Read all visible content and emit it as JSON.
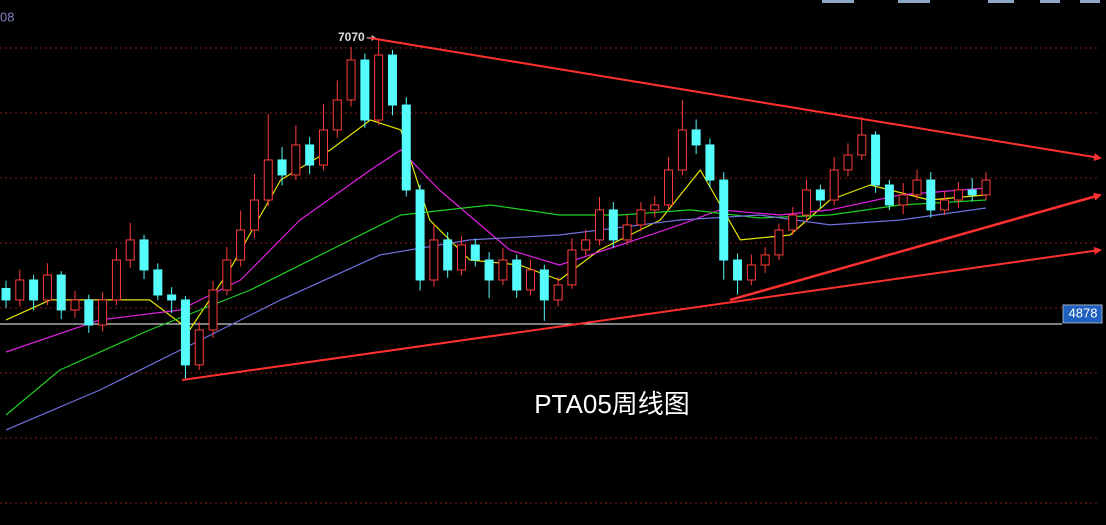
{
  "chart_data": {
    "type": "candlestick",
    "title": "PTA05周线图",
    "corner_label": "08",
    "peak_label": 7070,
    "reference_line": 4878,
    "up_color": "#ff3c3c",
    "down_color": "#54fcfc",
    "ylim": [
      3337,
      7361
    ],
    "open": [
      5150,
      5062,
      5215,
      5062,
      5253,
      4985,
      5062,
      4870,
      5062,
      5368,
      5522,
      5292,
      5100,
      5062,
      4564,
      4832,
      5138,
      5368,
      5598,
      5828,
      6135,
      6020,
      6250,
      6096,
      6365,
      6595,
      6901,
      6441,
      6939,
      6556,
      5905,
      5215,
      5522,
      5292,
      5483,
      5368,
      5215,
      5368,
      5138,
      5292,
      5062,
      5177,
      5445,
      5522,
      5752,
      5522,
      5637,
      5752,
      5790,
      6058,
      6365,
      6250,
      5981,
      5368,
      5215,
      5330,
      5407,
      5598,
      5713,
      5905,
      5828,
      6058,
      6173,
      6326,
      5943,
      5790,
      5867,
      5981,
      5752,
      5828,
      5905,
      5867
    ],
    "high": [
      5210,
      5295,
      5255,
      5343,
      5283,
      5132,
      5102,
      5122,
      5458,
      5652,
      5562,
      5342,
      5160,
      5092,
      4892,
      5208,
      5468,
      5748,
      6028,
      6485,
      6235,
      6400,
      6310,
      6565,
      6745,
      7001,
      6951,
      7070,
      6979,
      6616,
      5945,
      5642,
      5582,
      5553,
      5533,
      5428,
      5458,
      5408,
      5372,
      5332,
      5237,
      5535,
      5602,
      5852,
      5812,
      5717,
      5812,
      5860,
      6158,
      6595,
      6445,
      6300,
      6041,
      5418,
      5410,
      5467,
      5648,
      5773,
      5985,
      5945,
      6158,
      6263,
      6466,
      6356,
      5983,
      5957,
      6061,
      6041,
      5898,
      5965,
      5995,
      6041
    ],
    "low": [
      5002,
      5012,
      4982,
      5022,
      4915,
      4925,
      4810,
      4820,
      5022,
      5308,
      5222,
      5060,
      4962,
      4449,
      4524,
      4772,
      5098,
      5318,
      5538,
      5778,
      5940,
      5980,
      6026,
      6056,
      6305,
      6545,
      6381,
      6401,
      6476,
      5855,
      5135,
      5165,
      5232,
      5252,
      5318,
      5075,
      5175,
      5078,
      5098,
      4902,
      5012,
      5147,
      5405,
      5482,
      5462,
      5482,
      5587,
      5692,
      5750,
      6018,
      6180,
      5921,
      5218,
      5105,
      5175,
      5270,
      5367,
      5558,
      5663,
      5768,
      5788,
      6008,
      6133,
      5883,
      5750,
      5720,
      5827,
      5692,
      5712,
      5768,
      5817,
      5827
    ],
    "close": [
      5062,
      5215,
      5062,
      5253,
      4985,
      5062,
      4870,
      5062,
      5368,
      5522,
      5292,
      5100,
      5062,
      4564,
      4832,
      5138,
      5368,
      5598,
      5828,
      6135,
      6020,
      6250,
      6096,
      6365,
      6595,
      6901,
      6441,
      6939,
      6556,
      5905,
      5215,
      5522,
      5292,
      5483,
      5368,
      5215,
      5368,
      5138,
      5292,
      5062,
      5177,
      5445,
      5522,
      5752,
      5522,
      5637,
      5752,
      5790,
      6058,
      6365,
      6250,
      5981,
      5368,
      5215,
      5330,
      5407,
      5598,
      5713,
      5905,
      5828,
      6058,
      6173,
      6326,
      5943,
      5790,
      5867,
      5981,
      5752,
      5828,
      5905,
      5867,
      5981
    ],
    "lines": [
      {
        "color": "#e6e600",
        "x": [
          0,
          3.2,
          6.8,
          10.4,
          13.3,
          16.2,
          19.9,
          23.5,
          26.4,
          28.6,
          30.7,
          33.6,
          37.2,
          40.1,
          43,
          47.4,
          50.3,
          53.2,
          56.8,
          59.7,
          62.6,
          66.9,
          71
        ],
        "values": [
          4909,
          5062,
          5062,
          5062,
          4832,
          5292,
          5981,
          6212,
          6441,
          6365,
          5675,
          5368,
          5330,
          5215,
          5445,
          5675,
          6058,
          5522,
          5560,
          5828,
          5943,
          5828,
          5867
        ]
      },
      {
        "color": "#e020e0",
        "x": [
          0,
          6.8,
          12.6,
          17,
          21.3,
          26.4,
          28.6,
          31.4,
          36.5,
          40.1,
          44.5,
          48.8,
          51.7,
          56.1,
          59.7,
          64.8,
          71
        ],
        "values": [
          4663,
          4909,
          4985,
          5215,
          5675,
          6058,
          6212,
          5905,
          5445,
          5330,
          5483,
          5637,
          5752,
          5713,
          5752,
          5867,
          5920
        ]
      },
      {
        "color": "#20d020",
        "x": [
          0,
          3.9,
          10.4,
          17.7,
          23.5,
          28.6,
          35.1,
          40.1,
          44.5,
          49.6,
          54.6,
          59.7,
          64.8,
          71
        ],
        "values": [
          4180,
          4525,
          4832,
          5138,
          5445,
          5713,
          5790,
          5713,
          5713,
          5752,
          5690,
          5713,
          5790,
          5828
        ]
      },
      {
        "color": "#7070e0",
        "x": [
          0,
          6.8,
          14.1,
          19.9,
          27.1,
          33.6,
          40.1,
          48.8,
          54.6,
          59.7,
          64.8,
          71
        ],
        "values": [
          4066,
          4372,
          4755,
          5062,
          5407,
          5522,
          5560,
          5675,
          5713,
          5637,
          5675,
          5767
        ]
      }
    ]
  }
}
